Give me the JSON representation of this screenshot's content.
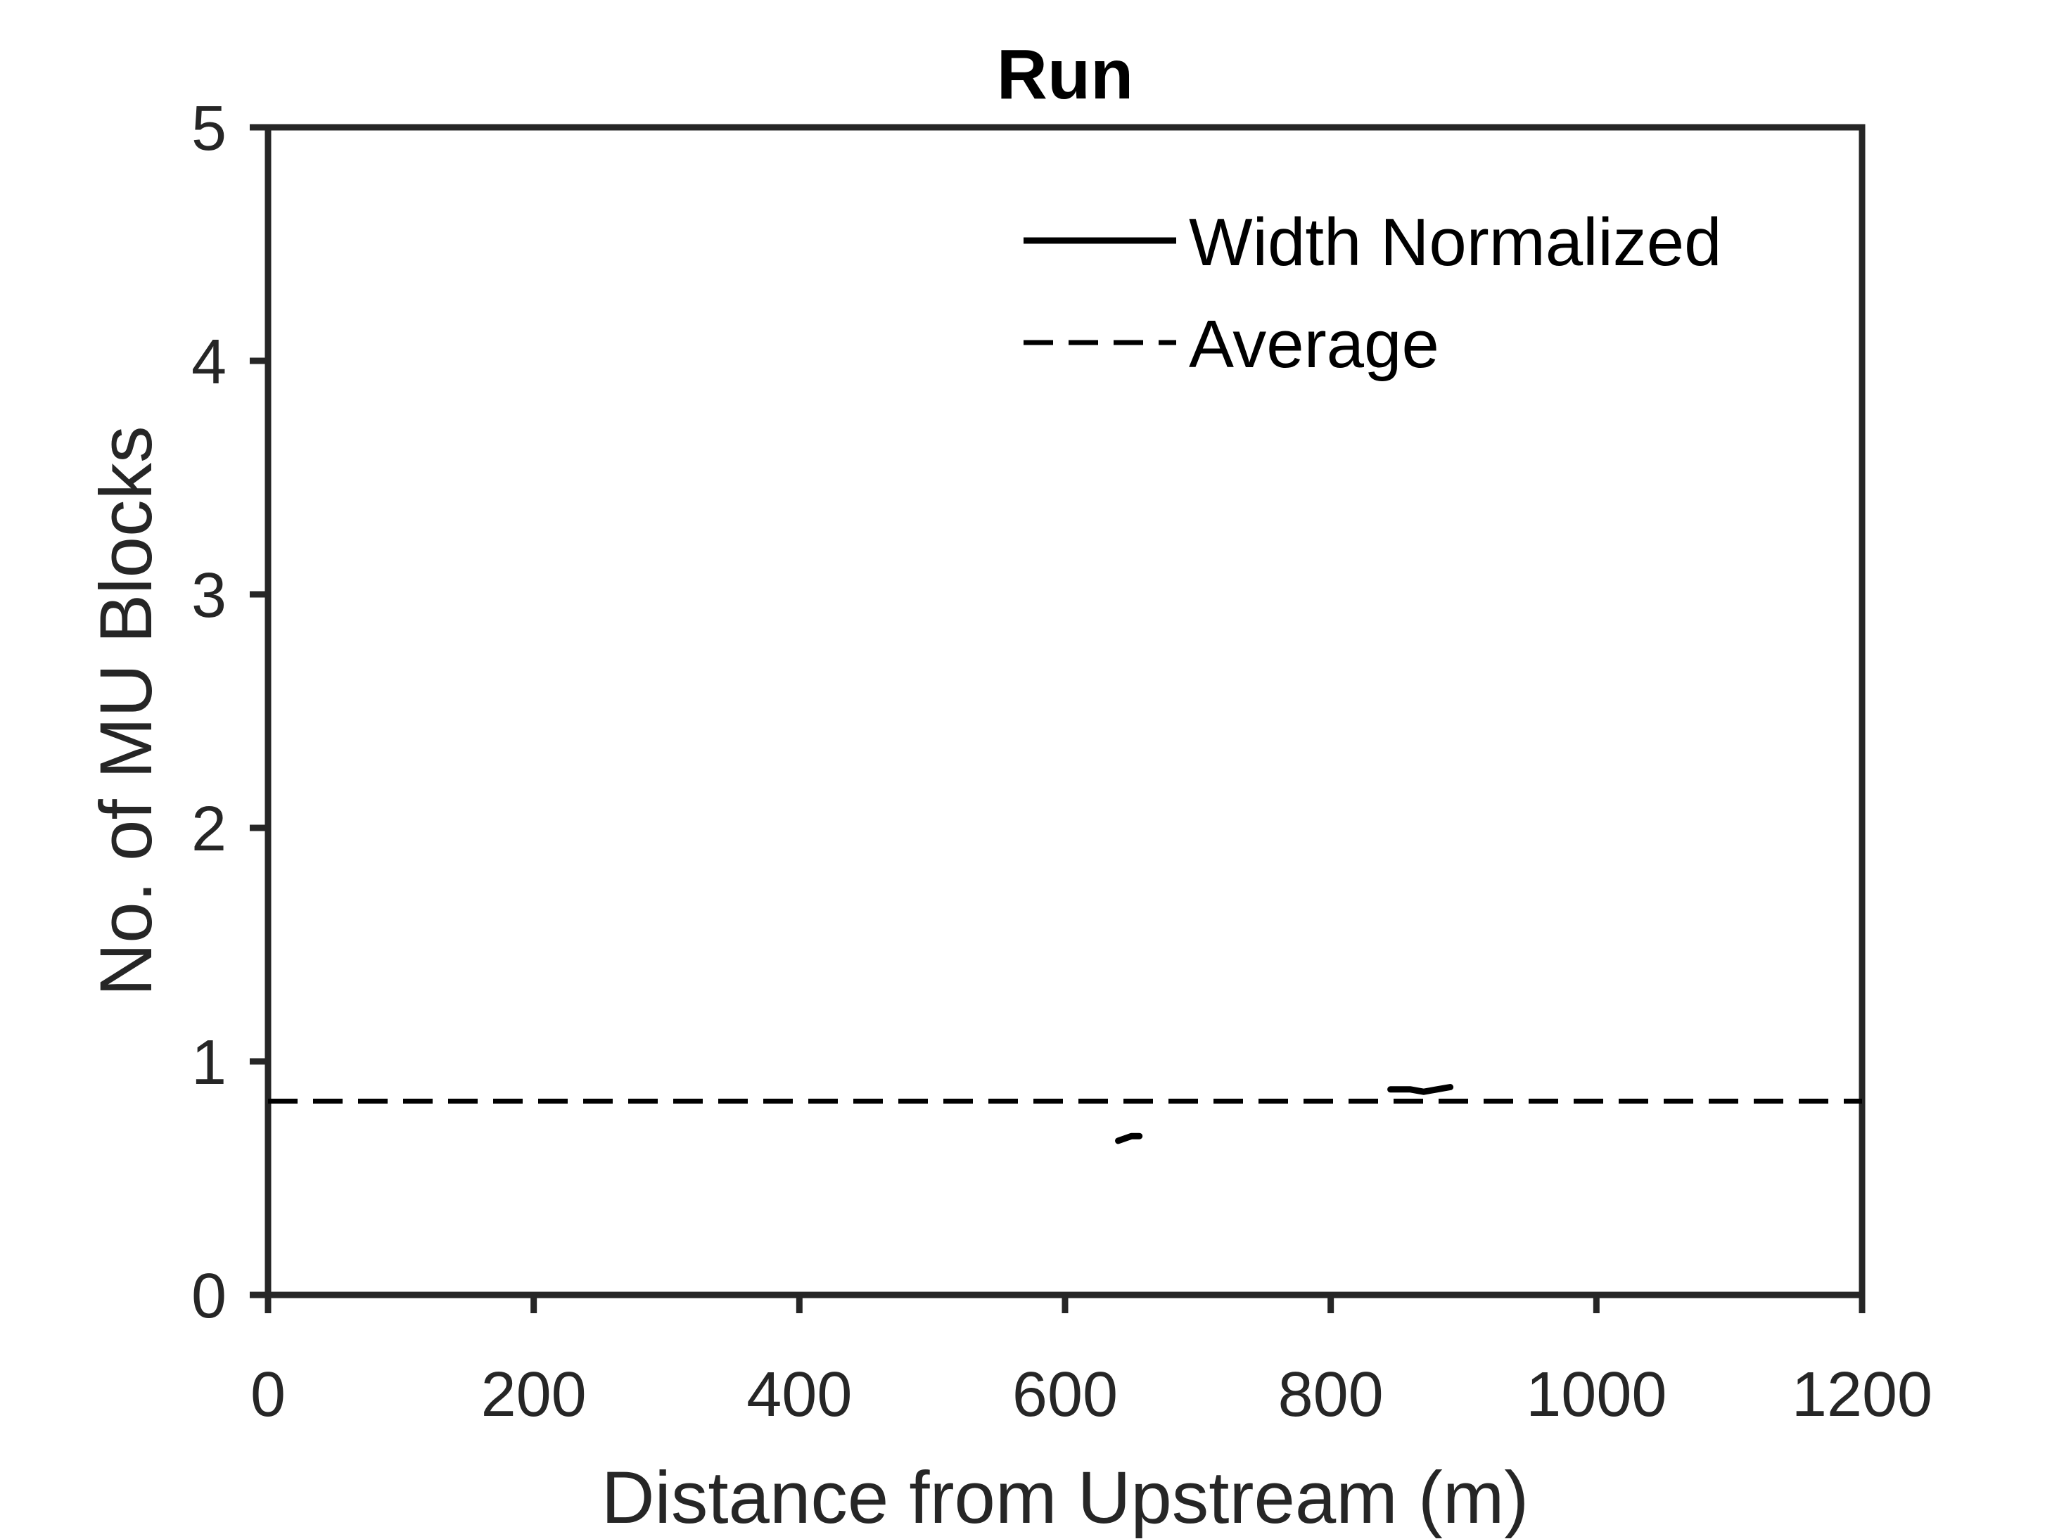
{
  "chart_data": {
    "type": "line",
    "title": "Run",
    "xlabel": "Distance from Upstream (m)",
    "ylabel": "No. of MU Blocks",
    "xlim": [
      0,
      1200
    ],
    "ylim": [
      0,
      5
    ],
    "xticks": [
      0,
      200,
      400,
      600,
      800,
      1000,
      1200
    ],
    "yticks": [
      0,
      1,
      2,
      3,
      4,
      5
    ],
    "grid": false,
    "legend": "top-right",
    "series": [
      {
        "name": "Width Normalized",
        "style": "solid",
        "color": "#000000",
        "segments": [
          [
            [
              640,
              0.66
            ],
            [
              650,
              0.68
            ],
            [
              656,
              0.68
            ]
          ],
          [
            [
              845,
              0.88
            ],
            [
              860,
              0.88
            ],
            [
              870,
              0.87
            ],
            [
              880,
              0.88
            ],
            [
              890,
              0.89
            ]
          ]
        ]
      },
      {
        "name": "Average",
        "style": "dashed",
        "color": "#000000",
        "y": 0.83
      }
    ]
  }
}
